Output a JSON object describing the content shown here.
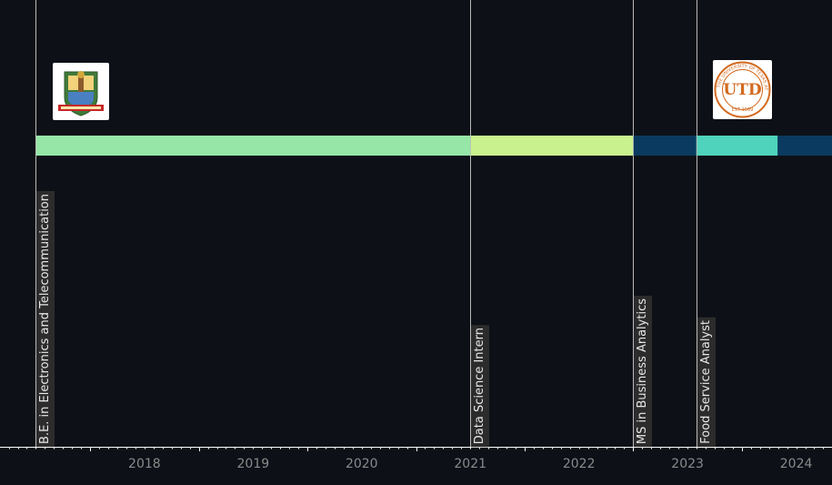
{
  "chart_data": {
    "type": "timeline",
    "x_axis": {
      "tick_labels": [
        "2018",
        "2019",
        "2020",
        "2021",
        "2022",
        "2023",
        "2024"
      ],
      "range": [
        2017.17,
        2024.83
      ]
    },
    "bars": [
      {
        "start": 2017.5,
        "end": 2021.5,
        "color": "#96e6a8"
      },
      {
        "start": 2021.5,
        "end": 2023.0,
        "color": "#c9f28f"
      },
      {
        "start": 2023.0,
        "end": 2023.58,
        "color": "#0a3a5f"
      },
      {
        "start": 2023.58,
        "end": 2024.33,
        "color": "#4fd3bc"
      },
      {
        "start": 2024.33,
        "end": 2024.83,
        "color": "#0a3a5f"
      }
    ],
    "events": [
      {
        "x": 2017.5,
        "label": "B.E. in Electronics and Telecommunication"
      },
      {
        "x": 2021.5,
        "label": "Data Science Intern"
      },
      {
        "x": 2023.0,
        "label": "MS in Business Analytics"
      },
      {
        "x": 2023.58,
        "label": "Food Service Analyst"
      }
    ],
    "logos": [
      {
        "name": "university-crest-logo",
        "x": 2017.5
      },
      {
        "name": "utd-logo",
        "x": 2023.58,
        "text": "UTD",
        "ring_text": "THE UNIVERSITY OF TEXAS AT DALLAS",
        "est": "EST 1969"
      }
    ],
    "colors": {
      "background": "#0d1017",
      "axis": "#ffffff",
      "tick_text": "#8a8a8a",
      "event_line": "#b9b9b9",
      "label_bg": "#2c2c2c",
      "utd_orange": "#d2691e"
    }
  }
}
